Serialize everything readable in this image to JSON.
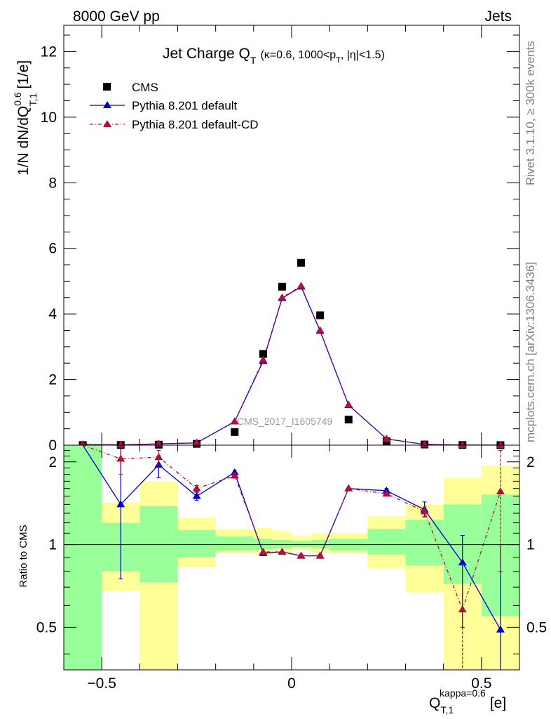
{
  "header": {
    "left": "8000 GeV pp",
    "right": "Jets"
  },
  "side_labels": {
    "rivet": "Rivet 3.1.10, ≥ 300k events",
    "mcplots": "mcplots.cern.ch [arXiv:1306.3436]"
  },
  "colors": {
    "cms": "#000000",
    "default": "#0000cc",
    "default_cd": "#b0103c",
    "band_inner": "#99ff99",
    "band_outer": "#ffff99"
  },
  "chart_data": [
    {
      "type": "scatter",
      "panel": "main",
      "title_main": "Jet Charge Q",
      "title_sub": "T",
      "title_rest": "(κ=0.6, 1000<p",
      "title_sub2": "T",
      "title_end": ", |η|<1.5)",
      "watermark": "CMS_2017_I1605749",
      "ylabel": "1/N dN/dQ",
      "ylabel_sup": "0.6",
      "ylabel_sub": "T,1",
      "ylabel_unit": "[1/e]",
      "ylim": [
        0,
        12.8
      ],
      "xlim": [
        -0.6,
        0.6
      ],
      "yticks": [
        0,
        2,
        4,
        6,
        8,
        10,
        12
      ],
      "x": [
        -0.55,
        -0.45,
        -0.35,
        -0.25,
        -0.15,
        -0.075,
        -0.025,
        0.025,
        0.075,
        0.15,
        0.25,
        0.35,
        0.45,
        0.55
      ],
      "series": [
        {
          "name": "CMS",
          "marker": "square",
          "values": [
            0.003,
            0.005,
            0.015,
            0.04,
            0.4,
            2.78,
            4.83,
            5.56,
            3.96,
            0.78,
            0.12,
            0.02,
            0.005,
            0.001
          ]
        },
        {
          "name": "Pythia 8.201 default",
          "marker": "triangle",
          "line": "solid",
          "values": [
            0.02,
            0.01,
            0.04,
            0.07,
            0.72,
            2.56,
            4.48,
            4.83,
            3.48,
            1.22,
            0.19,
            0.025,
            0.005,
            0.001
          ]
        },
        {
          "name": "Pythia 8.201 default-CD",
          "marker": "triangle",
          "line": "dashdot",
          "values": [
            0.02,
            0.01,
            0.04,
            0.07,
            0.72,
            2.6,
            4.5,
            4.85,
            3.5,
            1.23,
            0.19,
            0.026,
            0.003,
            0.002
          ]
        }
      ]
    },
    {
      "type": "line",
      "panel": "ratio",
      "ylabel": "Ratio to CMS",
      "ylim": [
        0.35,
        2.3
      ],
      "xlim": [
        -0.6,
        0.6
      ],
      "yticks": [
        0.5,
        1,
        2
      ],
      "xticks": [
        -0.5,
        0,
        0.5
      ],
      "xlabel": "Q",
      "xlabel_sub": "T,1",
      "xlabel_sup": "kappa=0.6",
      "xlabel_unit": "[e]",
      "reference": 1,
      "bands": [
        {
          "x0": -0.6,
          "x1": -0.5,
          "inner": [
            0.35,
            2.3
          ],
          "outer": [
            0.35,
            2.3
          ]
        },
        {
          "x0": -0.5,
          "x1": -0.4,
          "inner": [
            0.8,
            1.2
          ],
          "outer": [
            0.68,
            1.42
          ]
        },
        {
          "x0": -0.4,
          "x1": -0.3,
          "inner": [
            0.73,
            1.38
          ],
          "outer": [
            0.35,
            1.7
          ]
        },
        {
          "x0": -0.3,
          "x1": -0.2,
          "inner": [
            0.9,
            1.13
          ],
          "outer": [
            0.83,
            1.25
          ]
        },
        {
          "x0": -0.2,
          "x1": -0.1,
          "inner": [
            0.95,
            1.07
          ],
          "outer": [
            0.93,
            1.14
          ]
        },
        {
          "x0": -0.1,
          "x1": -0.05,
          "inner": [
            0.96,
            1.05
          ],
          "outer": [
            0.92,
            1.15
          ]
        },
        {
          "x0": -0.05,
          "x1": 0,
          "inner": [
            0.97,
            1.04
          ],
          "outer": [
            0.93,
            1.12
          ]
        },
        {
          "x0": 0,
          "x1": 0.05,
          "inner": [
            0.98,
            1.03
          ],
          "outer": [
            0.96,
            1.07
          ]
        },
        {
          "x0": 0.05,
          "x1": 0.1,
          "inner": [
            0.97,
            1.04
          ],
          "outer": [
            0.93,
            1.1
          ]
        },
        {
          "x0": 0.1,
          "x1": 0.2,
          "inner": [
            0.95,
            1.05
          ],
          "outer": [
            0.93,
            1.1
          ]
        },
        {
          "x0": 0.2,
          "x1": 0.3,
          "inner": [
            0.92,
            1.14
          ],
          "outer": [
            0.82,
            1.27
          ]
        },
        {
          "x0": 0.3,
          "x1": 0.4,
          "inner": [
            0.84,
            1.23
          ],
          "outer": [
            0.67,
            1.4
          ]
        },
        {
          "x0": 0.4,
          "x1": 0.5,
          "inner": [
            0.72,
            1.4
          ],
          "outer": [
            0.35,
            1.75
          ]
        },
        {
          "x0": 0.5,
          "x1": 0.6,
          "inner": [
            0.55,
            1.52
          ],
          "outer": [
            0.35,
            1.93
          ]
        }
      ],
      "x": [
        -0.55,
        -0.45,
        -0.35,
        -0.25,
        -0.15,
        -0.075,
        -0.025,
        0.025,
        0.075,
        0.15,
        0.25,
        0.35,
        0.45,
        0.55
      ],
      "series": [
        {
          "name": "Pythia 8.201 default",
          "values": [
            2.5,
            1.4,
            1.95,
            1.5,
            1.83,
            0.93,
            0.94,
            0.91,
            0.91,
            1.6,
            1.57,
            1.34,
            0.86,
            0.49
          ],
          "err_lo": [
            0,
            0.75,
            1.75,
            1.45,
            1.8,
            0.92,
            0.93,
            0.9,
            0.9,
            1.59,
            1.54,
            1.26,
            0.5,
            0.35
          ],
          "err_hi": [
            0,
            2.3,
            2.1,
            1.55,
            1.86,
            0.94,
            0.95,
            0.92,
            0.92,
            1.61,
            1.6,
            1.43,
            1.08,
            1.0
          ]
        },
        {
          "name": "Pythia 8.201 default-CD",
          "values": [
            2.5,
            2.05,
            2.08,
            1.6,
            1.78,
            0.94,
            0.94,
            0.91,
            0.91,
            1.6,
            1.53,
            1.32,
            0.58,
            1.56
          ],
          "err_lo": [
            0,
            1.8,
            1.95,
            1.56,
            1.75,
            0.93,
            0.93,
            0.9,
            0.9,
            1.59,
            1.51,
            1.27,
            0.35,
            0.8
          ],
          "err_hi": [
            0,
            2.3,
            2.2,
            1.64,
            1.81,
            0.95,
            0.95,
            0.92,
            0.92,
            1.61,
            1.56,
            1.37,
            0.85,
            2.2
          ]
        }
      ]
    }
  ]
}
